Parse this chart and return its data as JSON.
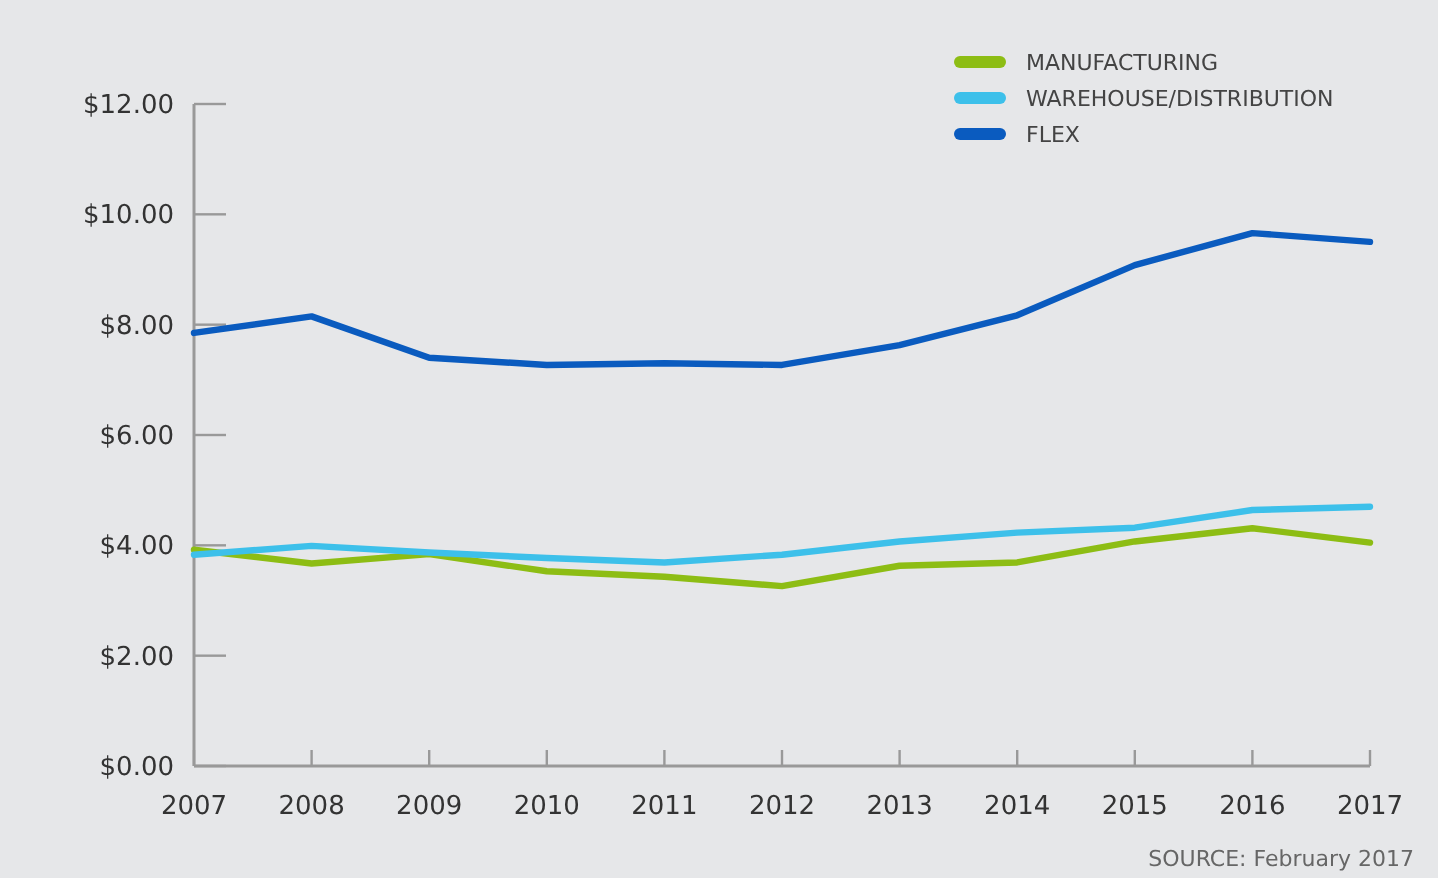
{
  "chart_data": {
    "type": "line",
    "categories": [
      "2007",
      "2008",
      "2009",
      "2010",
      "2011",
      "2012",
      "2013",
      "2014",
      "2015",
      "2016",
      "2017"
    ],
    "series": [
      {
        "name": "MANUFACTURING",
        "color": "#8dbd14",
        "values": [
          3.92,
          3.67,
          3.84,
          3.53,
          3.43,
          3.26,
          3.63,
          3.69,
          4.07,
          4.31,
          4.05
        ]
      },
      {
        "name": "WAREHOUSE/DISTRIBUTION",
        "color": "#3dc0ea",
        "values": [
          3.83,
          3.99,
          3.87,
          3.77,
          3.69,
          3.83,
          4.07,
          4.23,
          4.32,
          4.64,
          4.7
        ]
      },
      {
        "name": "FLEX",
        "color": "#0a5bbf",
        "values": [
          7.85,
          8.15,
          7.4,
          7.27,
          7.3,
          7.27,
          7.63,
          8.17,
          9.08,
          9.66,
          9.5
        ]
      }
    ],
    "ylim": [
      0,
      12
    ],
    "yticks": [
      {
        "value": 0,
        "label": "$0.00"
      },
      {
        "value": 2,
        "label": "$2.00"
      },
      {
        "value": 4,
        "label": "$4.00"
      },
      {
        "value": 6,
        "label": "$6.00"
      },
      {
        "value": 8,
        "label": "$8.00"
      },
      {
        "value": 10,
        "label": "$10.00"
      },
      {
        "value": 12,
        "label": "$12.00"
      }
    ],
    "grid": false,
    "legend": "top right",
    "marker": "none",
    "line_style": "solid",
    "annotations": [
      "SOURCE: February 2017"
    ]
  }
}
